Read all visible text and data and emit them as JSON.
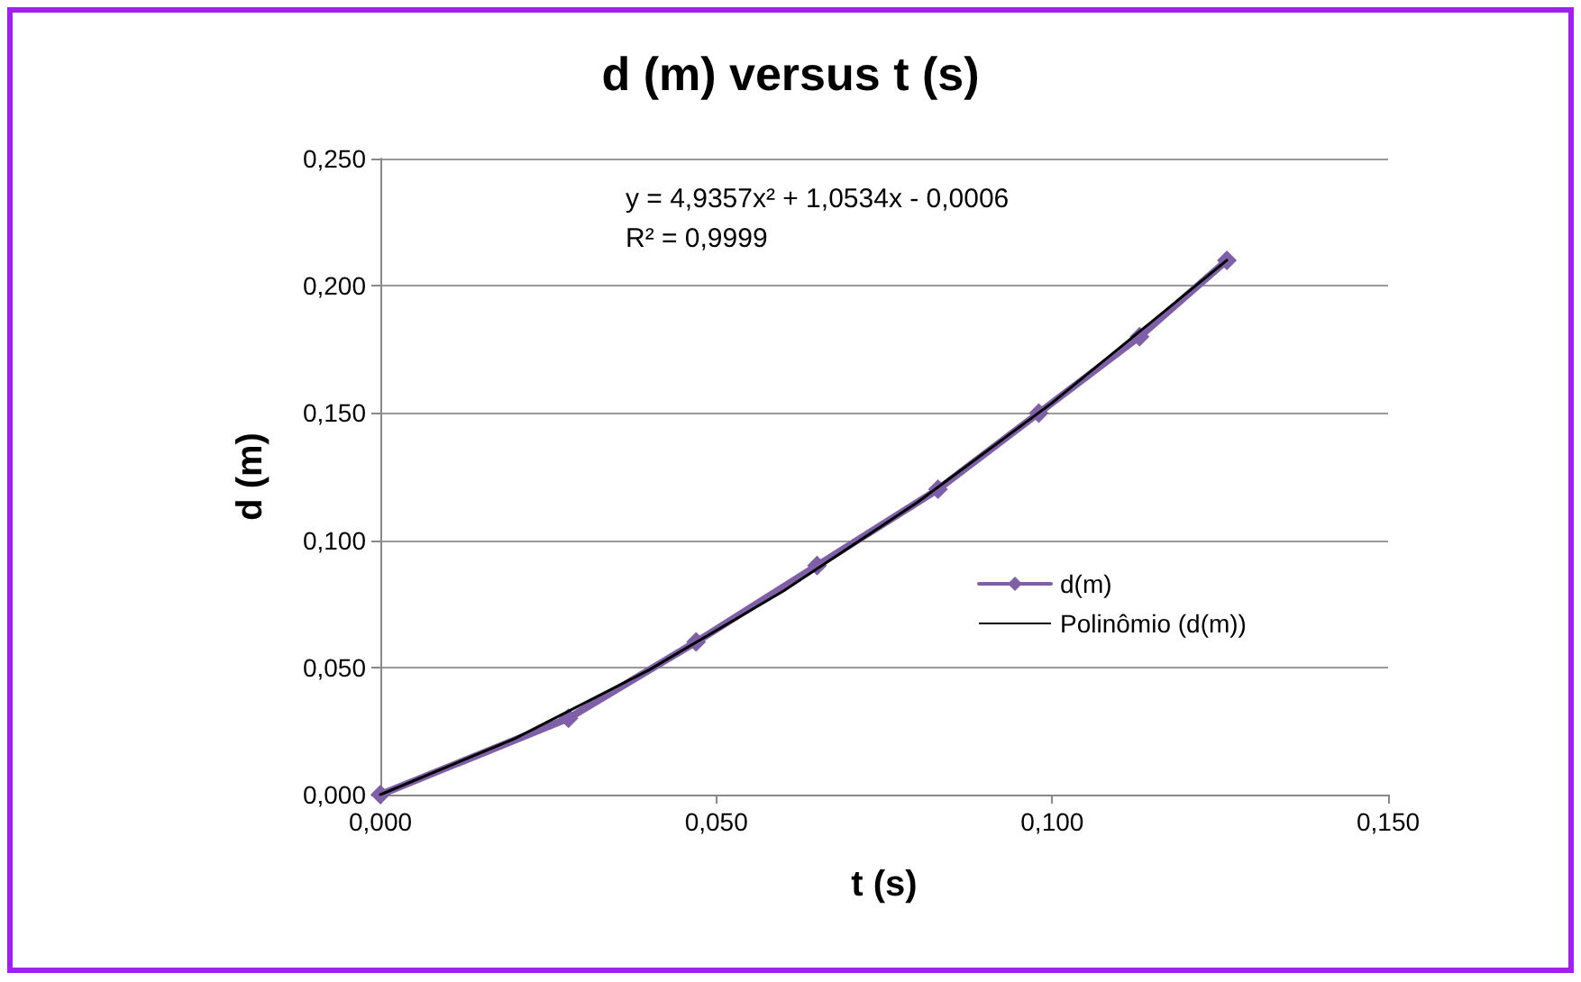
{
  "chart_data": {
    "type": "line",
    "title": "d (m) versus t (s)",
    "xlabel": "t (s)",
    "ylabel": "d (m)",
    "xlim": [
      0,
      0.15
    ],
    "ylim": [
      0,
      0.25
    ],
    "xticks": [
      {
        "value": 0,
        "label": "0,000"
      },
      {
        "value": 0.05,
        "label": "0,050"
      },
      {
        "value": 0.1,
        "label": "0,100"
      },
      {
        "value": 0.15,
        "label": "0,150"
      }
    ],
    "yticks": [
      {
        "value": 0,
        "label": "0,000"
      },
      {
        "value": 0.05,
        "label": "0,050"
      },
      {
        "value": 0.1,
        "label": "0,100"
      },
      {
        "value": 0.15,
        "label": "0,150"
      },
      {
        "value": 0.2,
        "label": "0,200"
      },
      {
        "value": 0.25,
        "label": "0,250"
      }
    ],
    "grid": "y",
    "legend": "right",
    "series": [
      {
        "name": "d(m)",
        "color": "#7f60a8",
        "marker": "diamond",
        "x": [
          0,
          0.028,
          0.047,
          0.065,
          0.083,
          0.098,
          0.113,
          0.126
        ],
        "values": [
          0,
          0.03,
          0.06,
          0.09,
          0.12,
          0.15,
          0.18,
          0.21
        ]
      },
      {
        "name": "Polinômio (d(m))",
        "color": "#000000",
        "marker": "none",
        "x": [
          0,
          0.02,
          0.04,
          0.06,
          0.08,
          0.1,
          0.126
        ],
        "values": [
          0,
          0.022,
          0.049,
          0.08,
          0.115,
          0.154,
          0.21
        ]
      }
    ],
    "annotations": [
      "y = 4,9357x² + 1,0534x - 0,0006",
      "R² = 0,9999"
    ]
  }
}
